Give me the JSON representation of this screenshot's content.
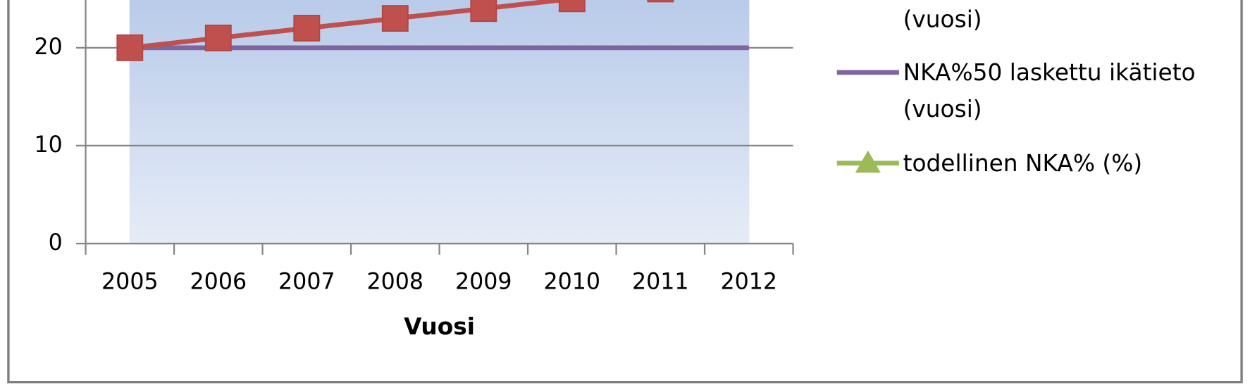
{
  "chart_data": {
    "type": "line",
    "xlabel": "Vuosi",
    "categories": [
      "2005",
      "2006",
      "2007",
      "2008",
      "2009",
      "2010",
      "2011",
      "2012"
    ],
    "ylim": [
      0,
      25
    ],
    "yticks": [
      0,
      10,
      20
    ],
    "grid": true,
    "series": [
      {
        "name": "(vuosi)",
        "color": "#c0504d",
        "marker": "square",
        "values": [
          20,
          21,
          22,
          23,
          24,
          25,
          26,
          null
        ]
      },
      {
        "name": "NKA%50 laskettu ikätieto (vuosi)",
        "color": "#8064a2",
        "marker": "none",
        "values": [
          20,
          20,
          20,
          20,
          20,
          20,
          20,
          20
        ]
      },
      {
        "name": "todellinen NKA% (%)",
        "color": "#9bbb59",
        "marker": "triangle",
        "values": [
          null,
          null,
          null,
          null,
          null,
          null,
          null,
          null
        ]
      }
    ]
  }
}
